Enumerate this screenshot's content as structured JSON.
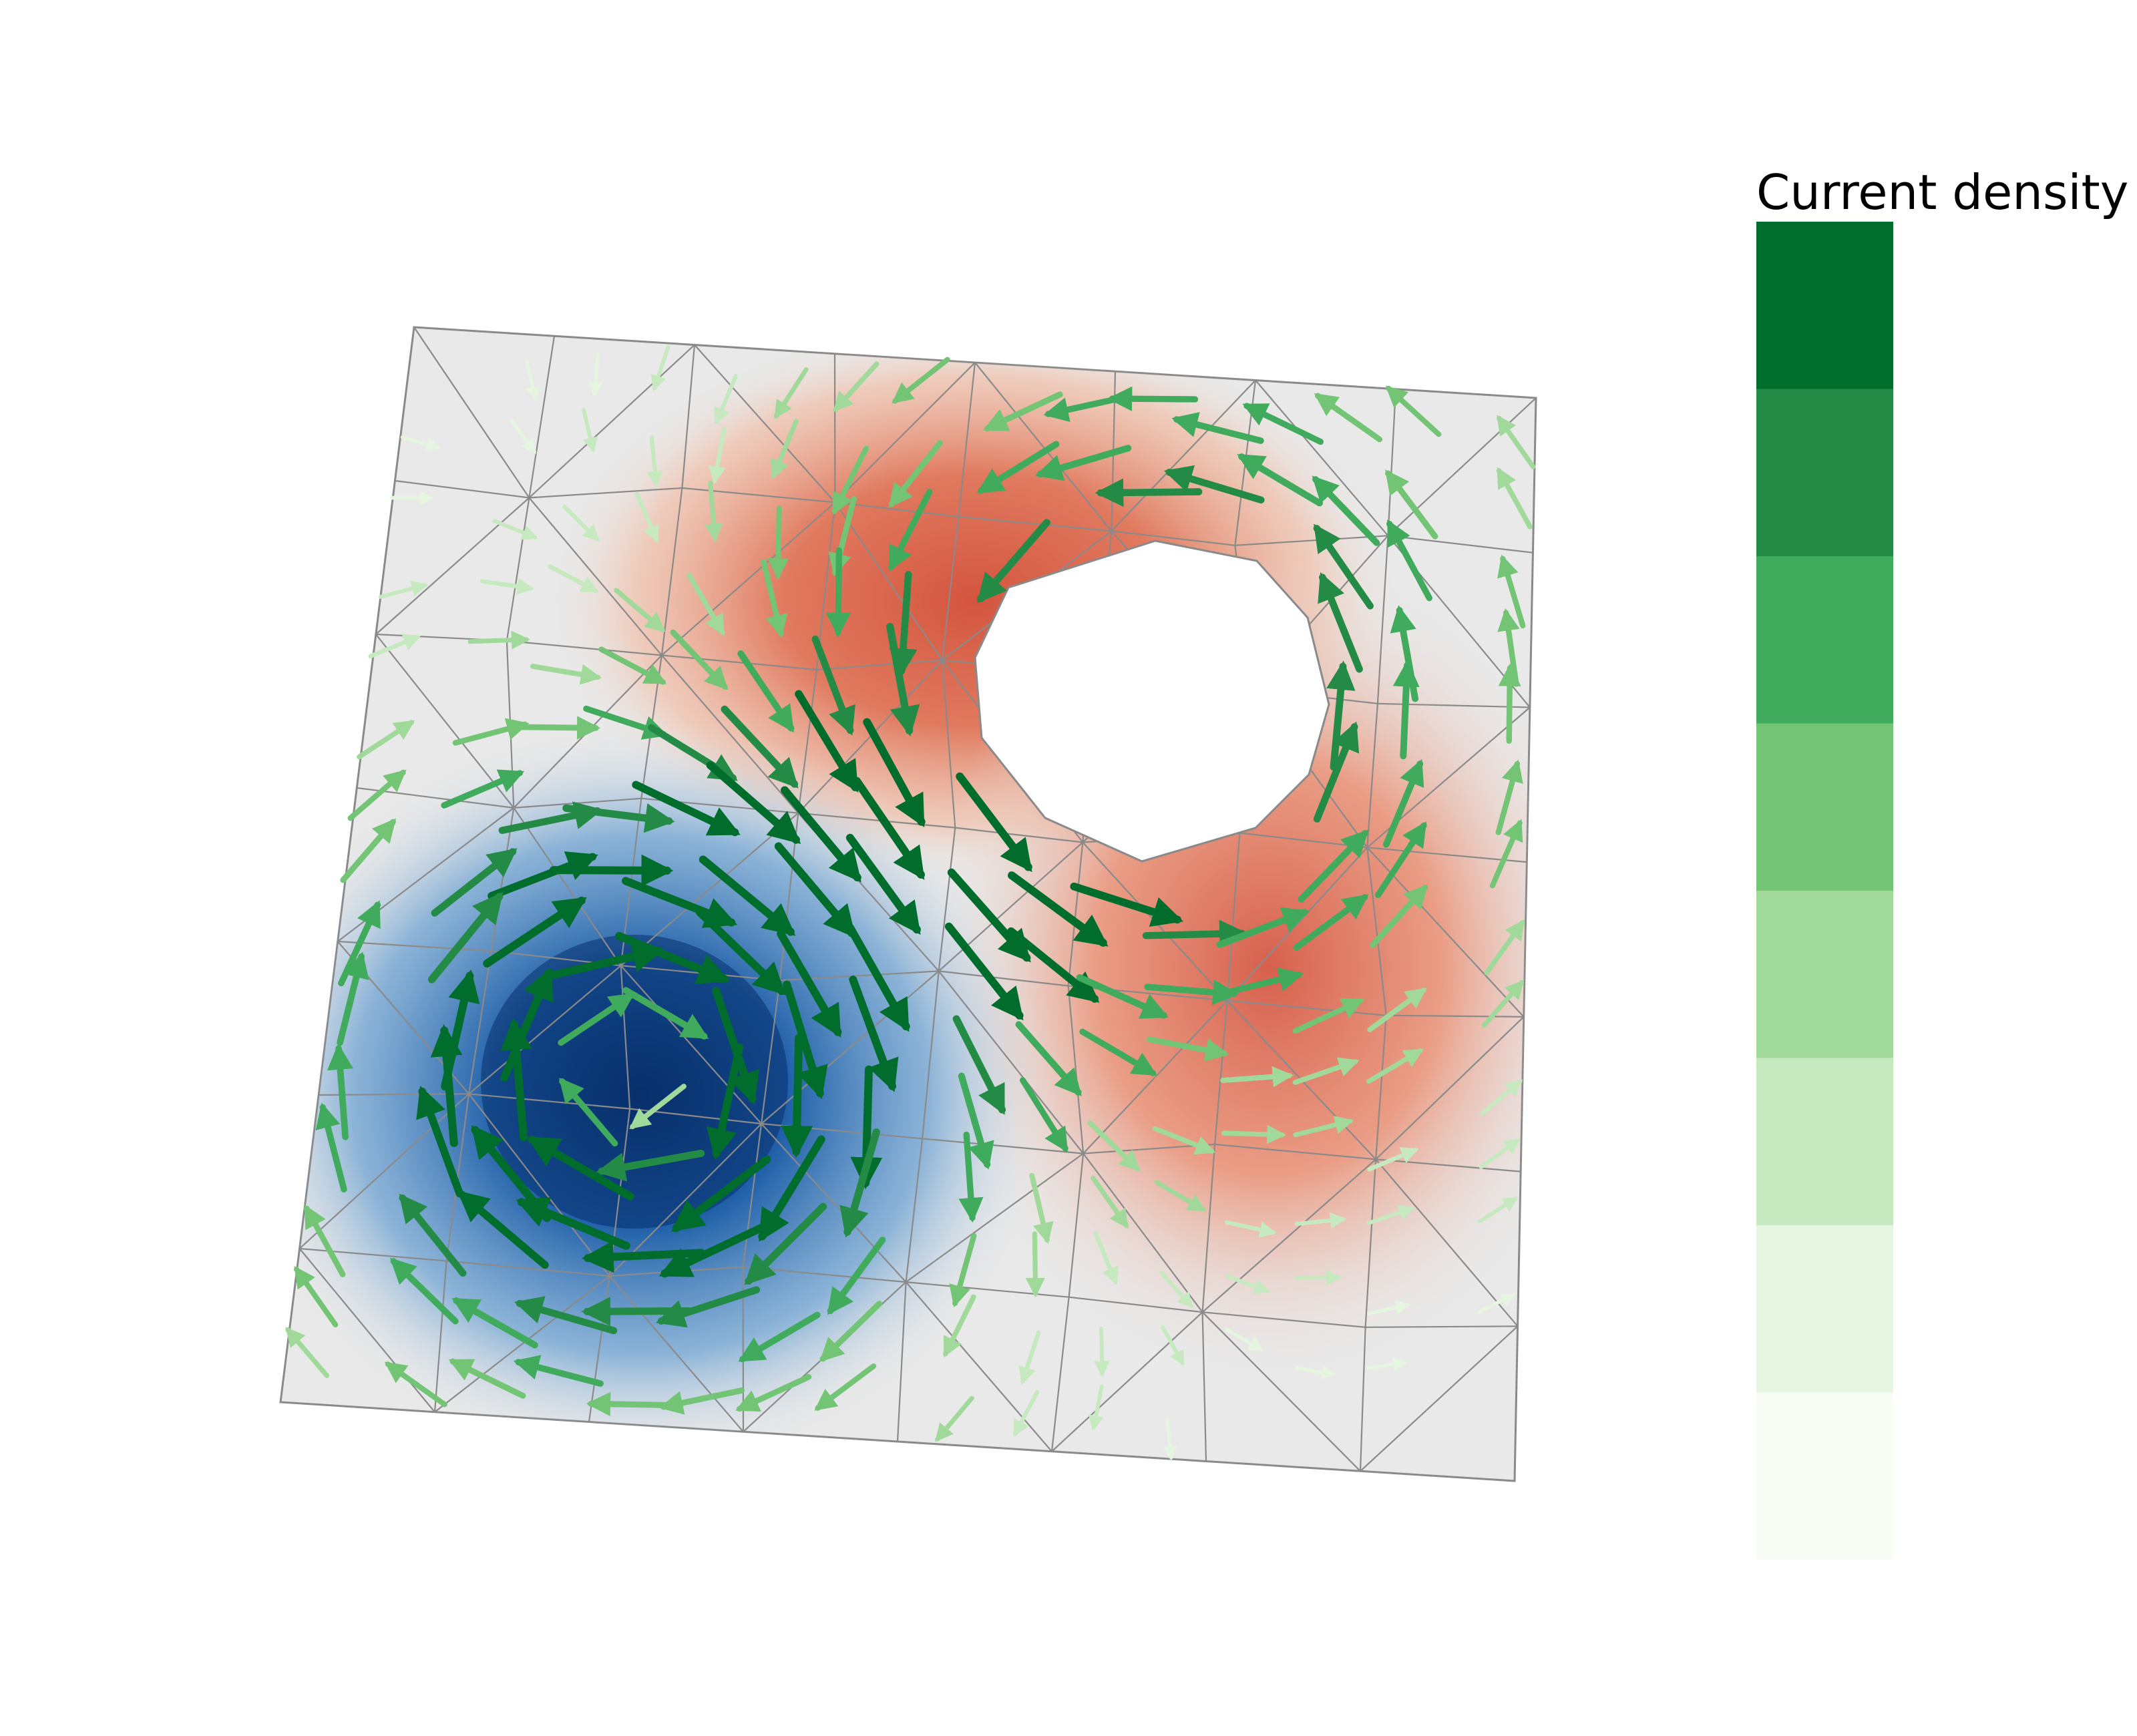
{
  "legend": {
    "title": "Current density",
    "bins": [
      "#006d2c",
      "#238b45",
      "#41ab5d",
      "#74c476",
      "#a1d99b",
      "#c7e9c0",
      "#e5f5e0",
      "#f7fcf5"
    ]
  },
  "colors": {
    "background": "#ffffff",
    "mesh_line": "#8a8a8a",
    "surface_neutral": "#e9e9e9",
    "positive": "#d6604d",
    "negative": "#08306b",
    "arrow_strong": "#005a24",
    "arrow_weak": "#c7e9c0"
  }
}
